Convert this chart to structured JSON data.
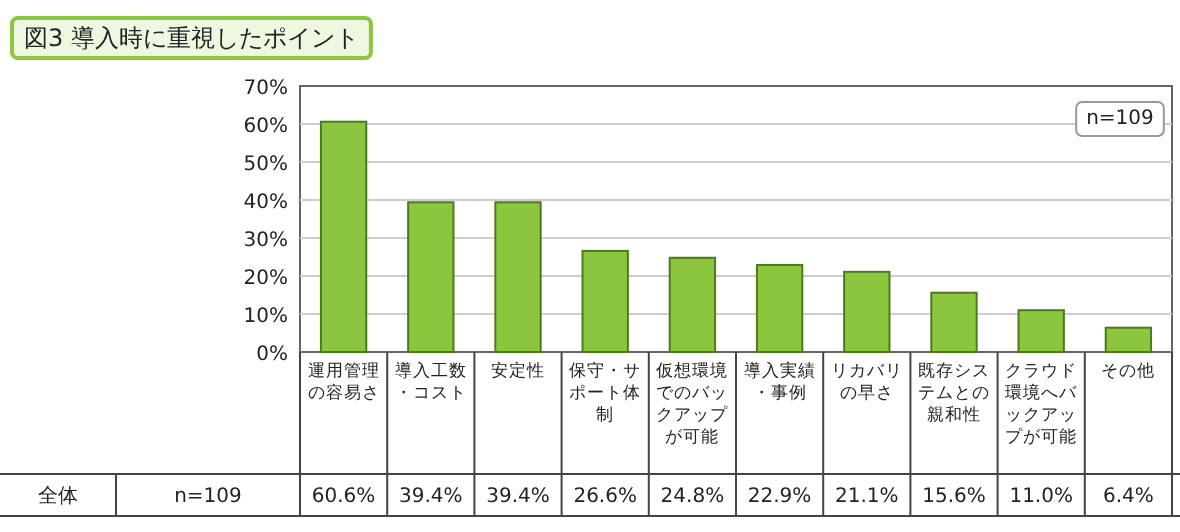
{
  "chart_data": {
    "type": "bar",
    "title": "図3 導入時に重視したポイント",
    "categories": [
      "運用管理の容易さ",
      "導入工数・コスト",
      "安定性",
      "保守・サポート体制",
      "仮想環境でのバックアップが可能",
      "導入実績・事例",
      "リカバリの早さ",
      "既存システムとの親和性",
      "クラウド環境へバックアップが可能",
      "その他"
    ],
    "values": [
      60.6,
      39.4,
      39.4,
      26.6,
      24.8,
      22.9,
      21.1,
      15.6,
      11.0,
      6.4
    ],
    "value_labels": [
      "60.6%",
      "39.4%",
      "39.4%",
      "26.6%",
      "24.8%",
      "22.9%",
      "21.1%",
      "15.6%",
      "11.0%",
      "6.4%"
    ],
    "color": "#8cc63e",
    "ylim": [
      0,
      70
    ],
    "yticks": [
      {
        "value": 0,
        "label": "0%"
      },
      {
        "value": 10,
        "label": "10%"
      },
      {
        "value": 20,
        "label": "20%"
      },
      {
        "value": 30,
        "label": "30%"
      },
      {
        "value": 40,
        "label": "40%"
      },
      {
        "value": 50,
        "label": "50%"
      },
      {
        "value": 60,
        "label": "60%"
      },
      {
        "value": 70,
        "label": "70%"
      }
    ],
    "grid": "y",
    "annotations": [
      "n=109",
      "全体",
      "n=109"
    ]
  }
}
